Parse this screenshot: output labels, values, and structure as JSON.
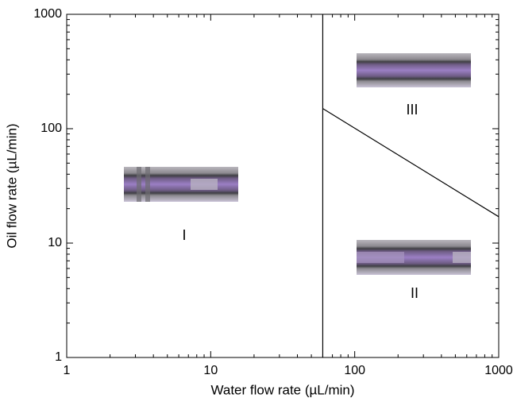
{
  "chart_data": {
    "type": "line",
    "xlabel": "Water flow rate (µL/min)",
    "ylabel": "Oil flow rate (µL/min)",
    "xscale": "log",
    "yscale": "log",
    "xlim": [
      1,
      1000
    ],
    "ylim": [
      1,
      1000
    ],
    "xticks": [
      1,
      10,
      100,
      1000
    ],
    "yticks": [
      1,
      10,
      100,
      1000
    ],
    "series": [
      {
        "color": "#000000",
        "x": [
          60,
          60
        ],
        "values": [
          1,
          1000
        ]
      },
      {
        "color": "#000000",
        "x": [
          60,
          1000
        ],
        "values": [
          150,
          17
        ]
      }
    ],
    "annotations": [
      "I",
      "II",
      "III"
    ]
  }
}
